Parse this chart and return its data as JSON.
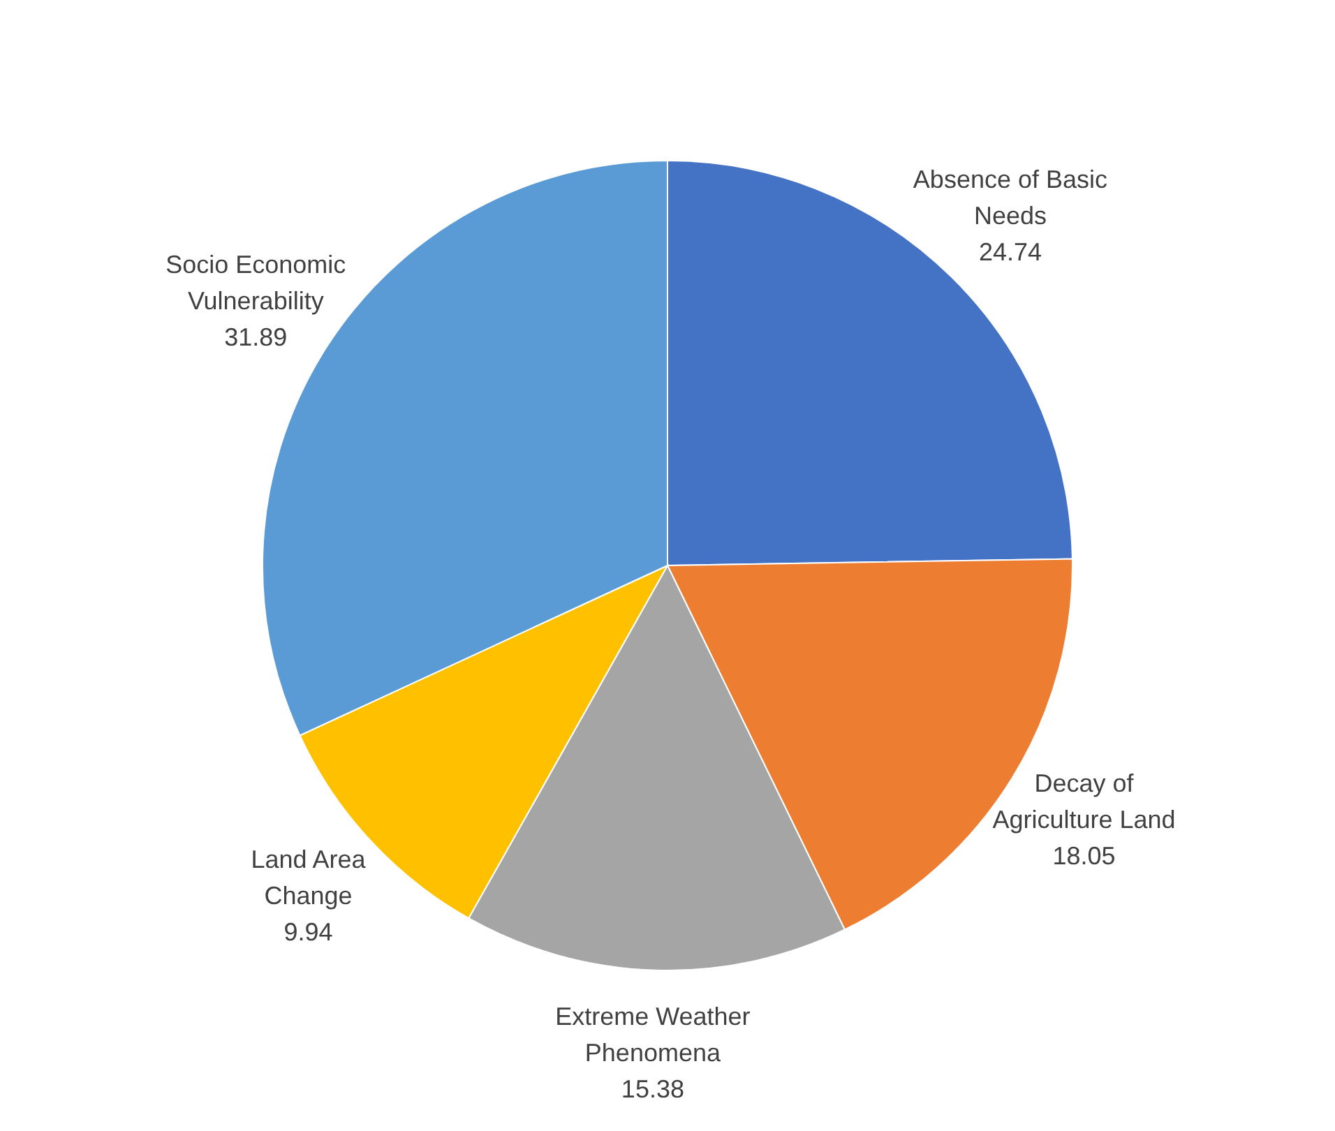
{
  "chart_data": {
    "type": "pie",
    "categories": [
      "Absence of Basic Needs",
      "Decay of Agriculture Land",
      "Extreme Weather Phenomena",
      "Land Area Change",
      "Socio Economic Vulnerability"
    ],
    "values": [
      24.74,
      18.05,
      15.38,
      9.94,
      31.89
    ],
    "colors": [
      "#4472c4",
      "#ed7d31",
      "#a5a5a5",
      "#ffc000",
      "#5b9bd5"
    ],
    "data_labels": true
  }
}
